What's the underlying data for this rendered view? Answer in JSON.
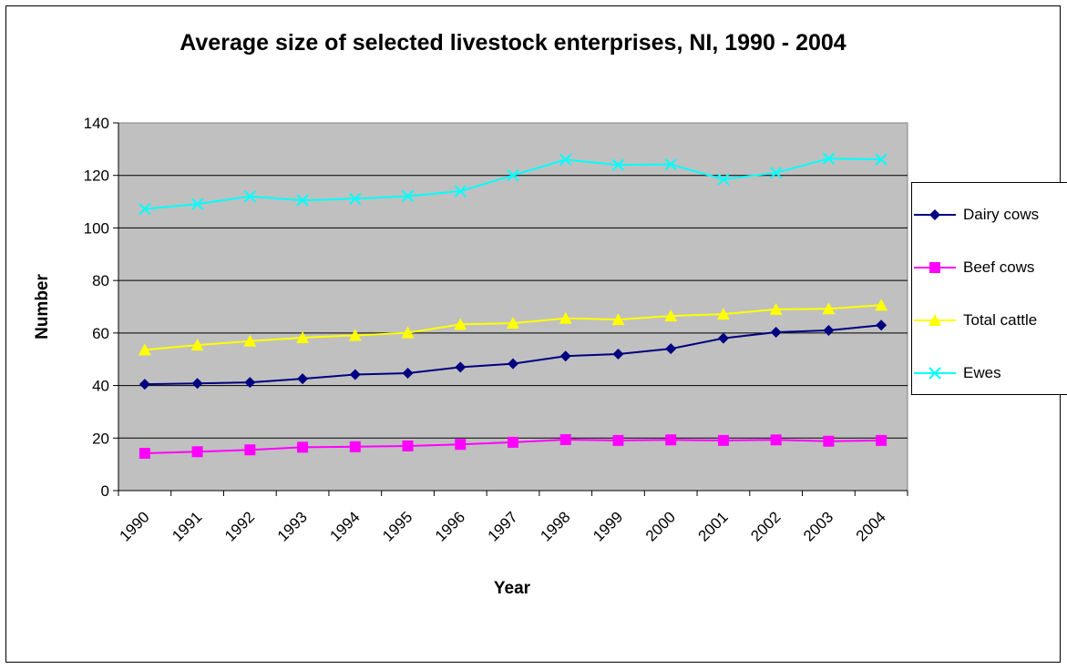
{
  "chart_data": {
    "type": "line",
    "title": "Average size of selected livestock enterprises, NI, 1990 - 2004",
    "xlabel": "Year",
    "ylabel": "Number",
    "ylim": [
      0,
      140
    ],
    "yticks": [
      0,
      20,
      40,
      60,
      80,
      100,
      120,
      140
    ],
    "grid": "horizontal",
    "legend_position": "right",
    "plot_background": "#C0C0C0",
    "categories": [
      "1990",
      "1991",
      "1992",
      "1993",
      "1994",
      "1995",
      "1996",
      "1997",
      "1998",
      "1999",
      "2000",
      "2001",
      "2002",
      "2003",
      "2004"
    ],
    "series": [
      {
        "name": "Dairy cows",
        "color": "#000080",
        "marker": "diamond",
        "values": [
          40.5,
          40.8,
          41.2,
          42.6,
          44.2,
          44.7,
          47.0,
          48.3,
          51.2,
          52.0,
          54.0,
          58.0,
          60.3,
          61.0,
          63.0
        ]
      },
      {
        "name": "Beef cows",
        "color": "#FF00FF",
        "marker": "square",
        "values": [
          14.2,
          14.8,
          15.5,
          16.5,
          16.7,
          17.0,
          17.6,
          18.4,
          19.4,
          19.1,
          19.3,
          19.1,
          19.3,
          18.8,
          19.1
        ]
      },
      {
        "name": "Total cattle",
        "color": "#FFFF00",
        "marker": "triangle",
        "values": [
          53.6,
          55.4,
          56.9,
          58.2,
          59.1,
          60.1,
          63.3,
          63.7,
          65.6,
          65.1,
          66.5,
          67.2,
          69.0,
          69.2,
          70.6
        ]
      },
      {
        "name": "Ewes",
        "color": "#00FFFF",
        "marker": "x",
        "values": [
          107.2,
          109.1,
          112.0,
          110.5,
          111.1,
          112.1,
          114.0,
          120.0,
          126.0,
          124.0,
          124.2,
          118.5,
          121.0,
          126.4,
          126.1
        ]
      }
    ]
  }
}
